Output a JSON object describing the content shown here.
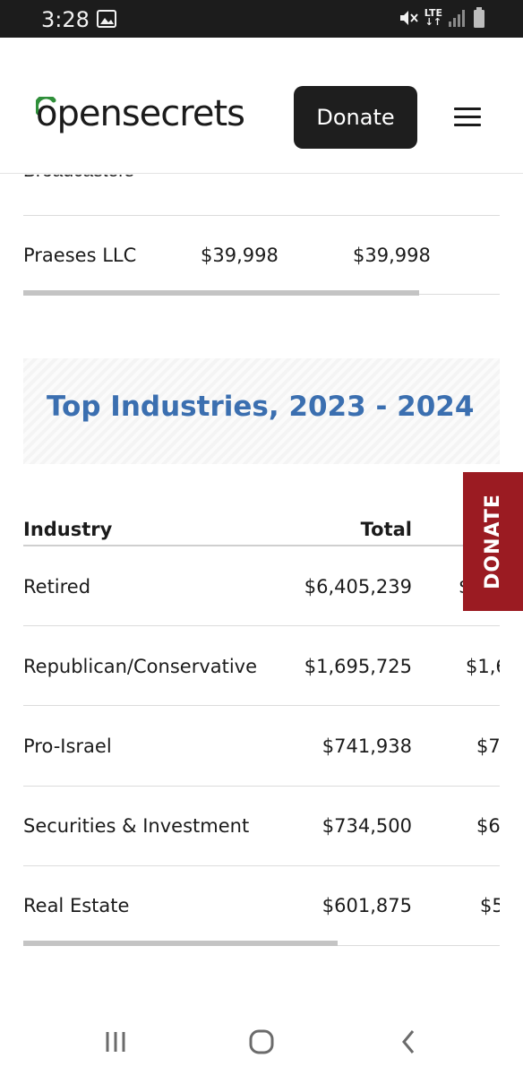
{
  "status_bar": {
    "time": "3:28",
    "network": "LTE",
    "icons": [
      "image-icon",
      "mute-icon",
      "lte-icon",
      "signal-icon",
      "battery-icon"
    ]
  },
  "header": {
    "logo_text": "opensecrets",
    "donate_label": "Donate",
    "menu_icon": "hamburger-menu-icon"
  },
  "top_table": {
    "partial_row_label": "Broadcasters",
    "rows": [
      {
        "name": "Praeses LLC",
        "total": "$39,998",
        "col3": "$39,998"
      }
    ],
    "scroll_fraction": 0.83
  },
  "industries": {
    "title": "Top Industries, 2023 - 2024",
    "headers": {
      "industry": "Industry",
      "total": "Total"
    },
    "rows": [
      {
        "industry": "Retired",
        "total": "$6,405,239",
        "col3": "$"
      },
      {
        "industry": "Republican/Conservative",
        "total": "$1,695,725",
        "col3": "$1,6"
      },
      {
        "industry": "Pro-Israel",
        "total": "$741,938",
        "col3": "$7"
      },
      {
        "industry": "Securities & Investment",
        "total": "$734,500",
        "col3": "$6"
      },
      {
        "industry": "Real Estate",
        "total": "$601,875",
        "col3": "$5"
      }
    ],
    "scroll_fraction": 0.66
  },
  "side_donate_label": "DONATE",
  "nav_bar": {
    "icons": [
      "recent-apps-icon",
      "home-icon",
      "back-icon"
    ]
  },
  "colors": {
    "accent_blue": "#3b6fb0",
    "donate_red": "#9b1b22",
    "logo_green": "#2f8f3a",
    "button_dark": "#1e1e1e"
  }
}
